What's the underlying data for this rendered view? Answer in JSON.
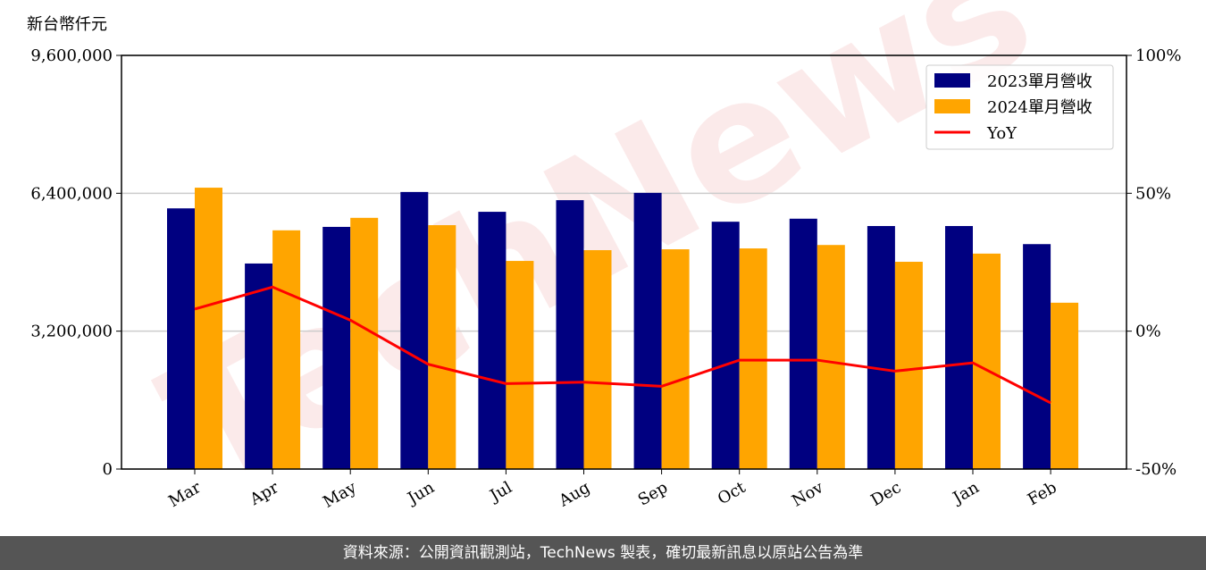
{
  "chart_data": {
    "type": "bar_line",
    "y_label": "新台幣仟元",
    "watermark": "TechNews",
    "categories": [
      "Mar",
      "Apr",
      "May",
      "Jun",
      "Jul",
      "Aug",
      "Sep",
      "Oct",
      "Nov",
      "Dec",
      "Jan",
      "Feb"
    ],
    "series": [
      {
        "name": "2023單月營收",
        "type": "bar",
        "color": "#000080",
        "values": [
          6050000,
          4770000,
          5620000,
          6430000,
          5970000,
          6240000,
          6410000,
          5740000,
          5810000,
          5640000,
          5640000,
          5220000
        ]
      },
      {
        "name": "2024單月營收",
        "type": "bar",
        "color": "#ffa500",
        "values": [
          6530000,
          5540000,
          5830000,
          5660000,
          4830000,
          5080000,
          5100000,
          5120000,
          5200000,
          4810000,
          5000000,
          3860000
        ]
      },
      {
        "name": "YoY",
        "type": "line",
        "axis": "y2",
        "color": "#ff0000",
        "values": [
          8,
          16,
          4,
          -12,
          -19,
          -18.5,
          -20,
          -10.5,
          -10.5,
          -14.5,
          -11.5,
          -26
        ]
      }
    ],
    "ylim": [
      0,
      9600000
    ],
    "yticks": [
      {
        "value": 0,
        "label": "0"
      },
      {
        "value": 3200000,
        "label": "3,200,000"
      },
      {
        "value": 6400000,
        "label": "6,400,000"
      },
      {
        "value": 9600000,
        "label": "9,600,000"
      }
    ],
    "y2lim": [
      -50,
      100
    ],
    "y2ticks": [
      {
        "value": -50,
        "label": "-50%"
      },
      {
        "value": 0,
        "label": "0%"
      },
      {
        "value": 50,
        "label": "50%"
      },
      {
        "value": 100,
        "label": "100%"
      }
    ],
    "grid": true,
    "legend": "upper right"
  },
  "footer": "資料來源：公開資訊觀測站，TechNews 製表，確切最新訊息以原站公告為準"
}
